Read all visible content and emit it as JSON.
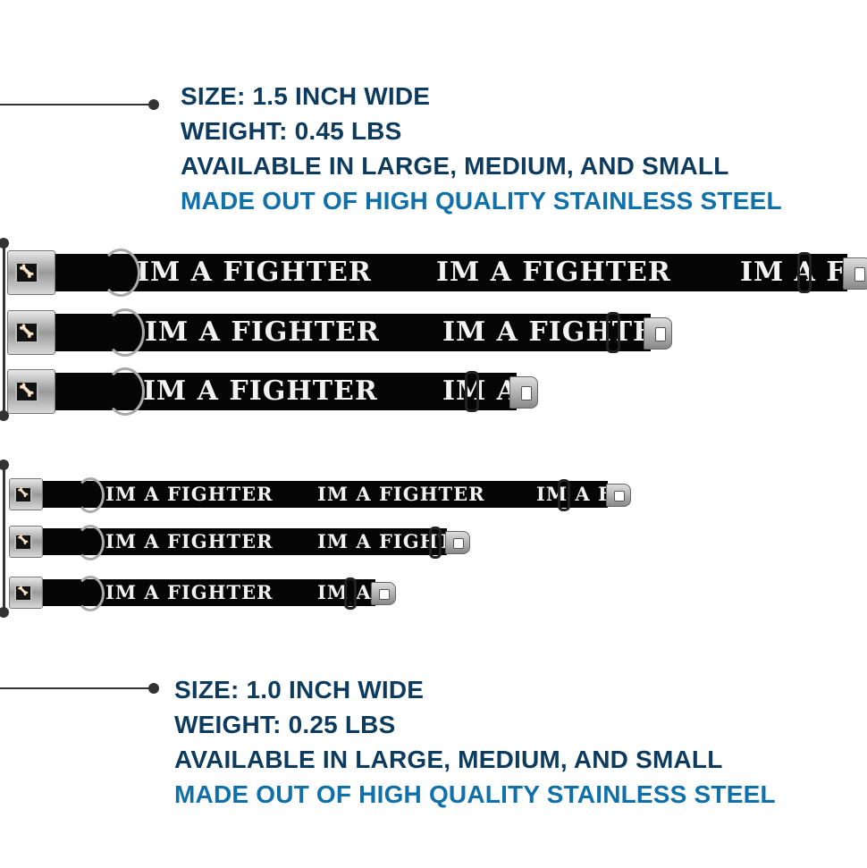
{
  "large_collars": {
    "specs": [
      "SIZE: 1.5 INCH WIDE",
      "WEIGHT: 0.45 LBS",
      "AVAILABLE IN LARGE, MEDIUM, AND SMALL",
      "MADE OUT OF HIGH QUALITY STAINLESS STEEL"
    ]
  },
  "small_collars": {
    "specs": [
      "SIZE: 1.0 INCH WIDE",
      "WEIGHT: 0.25 LBS",
      "AVAILABLE IN LARGE, MEDIUM, AND SMALL",
      "MADE OUT OF HIGH QUALITY STAINLESS STEEL"
    ]
  },
  "collar_print": "IM A FIGHTER",
  "buckle_icon": "bone-icon",
  "colors": {
    "spec_text": "#0d3b5e",
    "highlight": "#0f70aa",
    "strap": "#050505"
  }
}
